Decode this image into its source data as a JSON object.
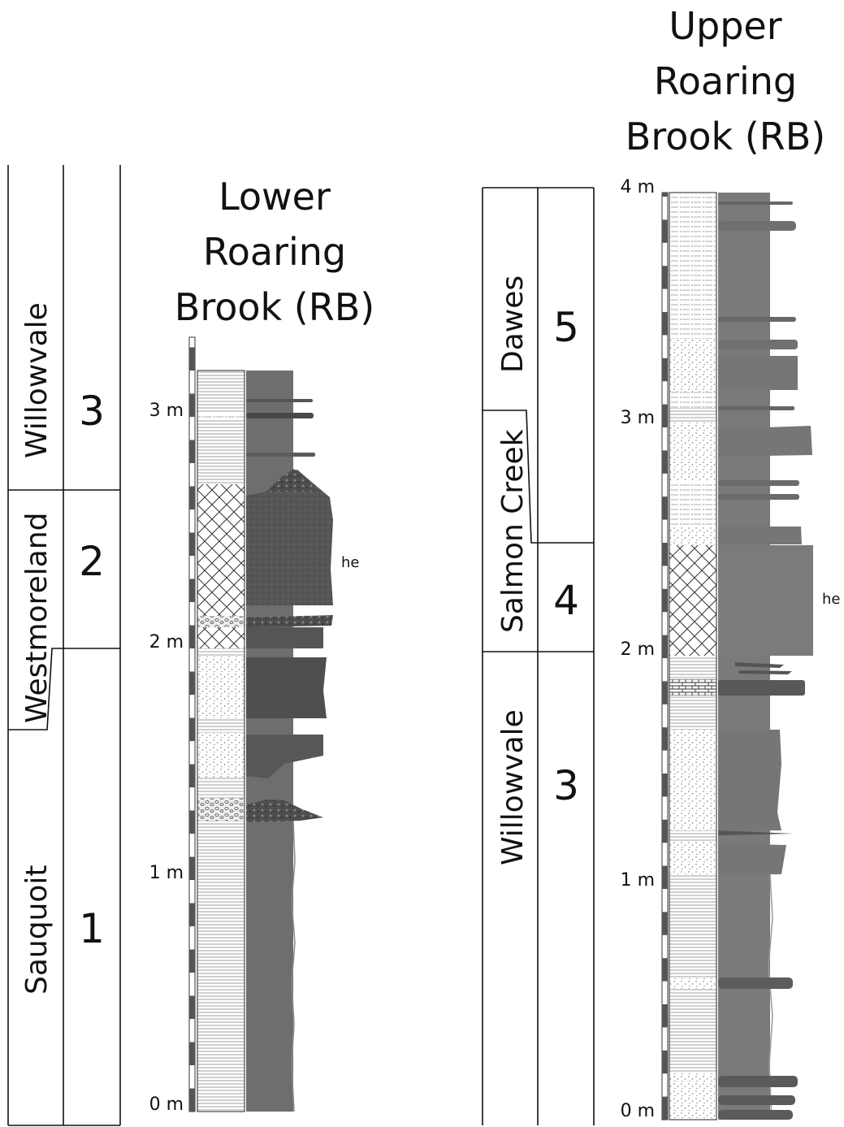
{
  "titles": {
    "lower": [
      "Lower",
      "Roaring",
      "Brook (RB)"
    ],
    "upper": [
      "Upper",
      "Roaring",
      "Brook (RB)"
    ]
  },
  "lower_section": {
    "formations": [
      {
        "name": "Willowvale",
        "unit": "3"
      },
      {
        "name": "Westmoreland",
        "unit": "2"
      },
      {
        "name": "Sauquoit",
        "unit": "1"
      }
    ],
    "scale_labels": [
      "0 m",
      "1 m",
      "2 m",
      "3 m"
    ],
    "annotation": "he"
  },
  "upper_section": {
    "formations": [
      {
        "name": "Dawes",
        "unit": "5"
      },
      {
        "name": "Salmon Creek",
        "unit": "4"
      },
      {
        "name": "Willowvale",
        "unit": "3"
      }
    ],
    "scale_labels": [
      "0 m",
      "1 m",
      "2 m",
      "3 m",
      "4 m"
    ],
    "annotation": "he"
  },
  "colors": {
    "weathering_profile": "#6e6e6e",
    "dark_bed": "#575757",
    "coarse_bed": "#4d4d4d",
    "outline": "#111111"
  }
}
